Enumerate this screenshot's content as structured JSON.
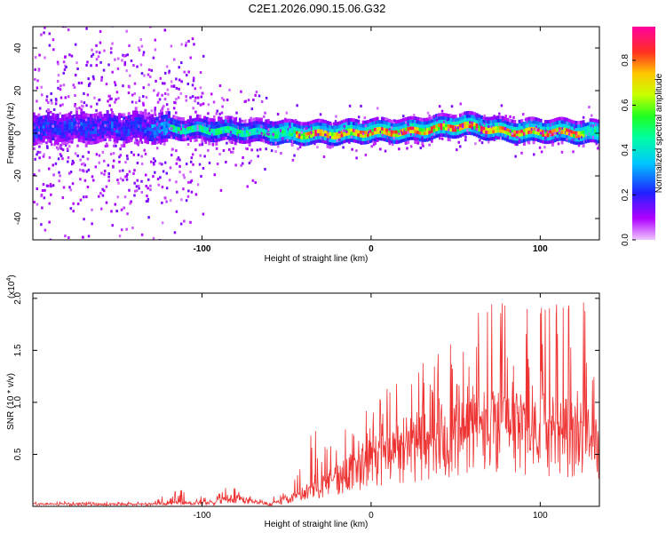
{
  "title": "C2E1.2026.090.15.06.G32",
  "chart_data": [
    {
      "type": "heatmap",
      "xlabel": "Height of straight line (km)",
      "ylabel": "Frequency (Hz)",
      "xlim": [
        -200,
        135
      ],
      "ylim": [
        -50,
        50
      ],
      "xticks": [
        -100,
        0,
        100
      ],
      "xtick_labels": [
        "-100",
        "0",
        "100"
      ],
      "yticks": [
        -40,
        -20,
        0,
        20,
        40
      ],
      "ytick_labels": [
        "-40",
        "-20",
        "0",
        "20",
        "40"
      ],
      "colorbar": {
        "label": "Normalized spectral amplitude",
        "range": [
          0.0,
          0.95
        ],
        "ticks": [
          0.0,
          0.2,
          0.4,
          0.6,
          0.8
        ],
        "tick_labels": [
          "0.0",
          "0.2",
          "0.4",
          "0.6",
          "0.8"
        ],
        "colormap": "rainbow (magenta-blue-cyan-green-yellow-red)"
      },
      "description_values": {
        "centerline_frequency_hz": [
          {
            "x": -200,
            "y": 2
          },
          {
            "x": -150,
            "y": 3
          },
          {
            "x": -100,
            "y": 2
          },
          {
            "x": -50,
            "y": 0
          },
          {
            "x": -20,
            "y": 0
          },
          {
            "x": 0,
            "y": 1
          },
          {
            "x": 20,
            "y": 1
          },
          {
            "x": 55,
            "y": 4
          },
          {
            "x": 80,
            "y": 1
          },
          {
            "x": 110,
            "y": 1
          },
          {
            "x": 135,
            "y": 0
          }
        ],
        "peak_amplitude_region_km": [
          -40,
          60
        ]
      }
    },
    {
      "type": "line",
      "xlabel": "Height of straight line (km)",
      "ylabel": "SNR (10 * v/v)",
      "y_multiplier": "(x10",
      "y_multiplier_exp": "4",
      "y_multiplier_close": ")",
      "xlim": [
        -200,
        135
      ],
      "ylim": [
        0,
        20500
      ],
      "xticks": [
        -100,
        0,
        100
      ],
      "xtick_labels": [
        "-100",
        "0",
        "100"
      ],
      "yticks": [
        5000,
        10000,
        15000,
        20000
      ],
      "ytick_labels": [
        "0.5",
        "1.0",
        "1.5",
        "2.0"
      ],
      "color": "#ee3333",
      "envelope": [
        {
          "x": -200,
          "base": 200,
          "peak": 500
        },
        {
          "x": -130,
          "base": 200,
          "peak": 500
        },
        {
          "x": -112,
          "base": 300,
          "peak": 1800
        },
        {
          "x": -95,
          "base": 300,
          "peak": 900
        },
        {
          "x": -80,
          "base": 800,
          "peak": 2800
        },
        {
          "x": -70,
          "base": 400,
          "peak": 1200
        },
        {
          "x": -60,
          "base": 200,
          "peak": 400
        },
        {
          "x": -50,
          "base": 600,
          "peak": 2600
        },
        {
          "x": -35,
          "base": 1600,
          "peak": 7800
        },
        {
          "x": -20,
          "base": 2600,
          "peak": 6500
        },
        {
          "x": 0,
          "base": 4200,
          "peak": 11500
        },
        {
          "x": 20,
          "base": 5500,
          "peak": 12500
        },
        {
          "x": 40,
          "base": 6500,
          "peak": 15000
        },
        {
          "x": 60,
          "base": 6800,
          "peak": 18500
        },
        {
          "x": 70,
          "base": 7000,
          "peak": 20000
        },
        {
          "x": 90,
          "base": 6800,
          "peak": 19000
        },
        {
          "x": 110,
          "base": 6800,
          "peak": 19500
        },
        {
          "x": 125,
          "base": 6500,
          "peak": 20000
        },
        {
          "x": 135,
          "base": 6200,
          "peak": 16000
        }
      ]
    }
  ]
}
